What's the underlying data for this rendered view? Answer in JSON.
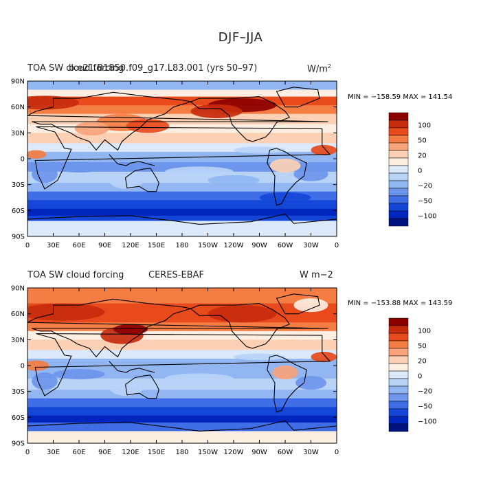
{
  "page_title": "DJF–JJA",
  "colors": {
    "levels": [
      "#8b0000",
      "#c72b0e",
      "#e84a1c",
      "#f47d44",
      "#f9a37a",
      "#fcd0b4",
      "#fdeee2",
      "#dbe9fa",
      "#b9d3f7",
      "#91b6f1",
      "#6d95ec",
      "#3f6ee6",
      "#1446d8",
      "#0026bd",
      "#001280"
    ]
  },
  "panels": [
    {
      "title_left": "TOA SW cloud forcing",
      "title_overlap": "b.e21.B1850.f09_g17.L83.001 (yrs 50–97)",
      "units": "W/m",
      "units_sup": "2",
      "stats": "MIN = −158.59  MAX = 141.54",
      "colorbar_labels": [
        "100",
        "50",
        "20",
        "0",
        "−20",
        "−50",
        "−100"
      ]
    },
    {
      "title_left": "TOA SW cloud forcing",
      "title_overlap": "CERES-EBAF",
      "units": "W m−2",
      "units_sup": "",
      "stats": "MIN = −153.88  MAX = 143.59",
      "colorbar_labels": [
        "100",
        "50",
        "20",
        "0",
        "−20",
        "−50",
        "−100"
      ]
    }
  ],
  "chart_data": {
    "type": "heatmap",
    "y_ticks": [
      "90N",
      "60N",
      "30N",
      "0",
      "30S",
      "60S",
      "90S"
    ],
    "x_ticks": [
      "0",
      "30E",
      "60E",
      "90E",
      "120E",
      "150E",
      "180",
      "150W",
      "120W",
      "90W",
      "60W",
      "30W",
      "0"
    ],
    "contour_levels": [
      100,
      75,
      50,
      30,
      20,
      10,
      0,
      -10,
      -20,
      -30,
      -50,
      -75,
      -100,
      -125
    ]
  }
}
